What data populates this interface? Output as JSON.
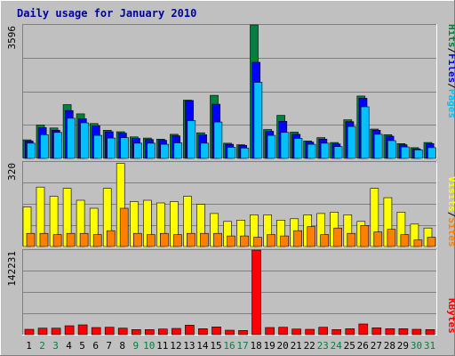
{
  "title": "Daily usage for January 2010",
  "colors": {
    "background": "#c0c0c0",
    "plot": "#c0c0c0",
    "grid": "#808080",
    "title": "#0000a0",
    "hits": "#008040",
    "files": "#0000ff",
    "pages": "#00c0ff",
    "visits": "#ffff00",
    "sites": "#ff8000",
    "kbytes": "#ff0000",
    "weekday_label": "#000000",
    "weekend_label": "#008040"
  },
  "chart_data": [
    {
      "type": "bar",
      "panel": "top",
      "max_label": "3596",
      "ylim": [
        0,
        3596
      ],
      "right_labels": [
        "Pages",
        "/",
        "Files",
        "/",
        "Hits"
      ],
      "categories": [
        "1",
        "2",
        "3",
        "4",
        "5",
        "6",
        "7",
        "8",
        "9",
        "10",
        "11",
        "12",
        "13",
        "14",
        "15",
        "16",
        "17",
        "18",
        "19",
        "20",
        "21",
        "22",
        "23",
        "24",
        "25",
        "26",
        "27",
        "28",
        "29",
        "30",
        "31"
      ],
      "series": [
        {
          "name": "Hits",
          "values": [
            500,
            900,
            820,
            1450,
            1200,
            940,
            760,
            720,
            580,
            550,
            520,
            650,
            1570,
            690,
            1700,
            410,
            370,
            3596,
            780,
            1160,
            710,
            470,
            560,
            430,
            1040,
            1680,
            790,
            640,
            400,
            290,
            430
          ]
        },
        {
          "name": "Files",
          "values": [
            470,
            830,
            760,
            1290,
            1070,
            880,
            720,
            680,
            540,
            510,
            490,
            610,
            1560,
            640,
            1460,
            380,
            350,
            2590,
            730,
            1000,
            650,
            440,
            520,
            390,
            990,
            1620,
            760,
            600,
            370,
            260,
            400
          ]
        },
        {
          "name": "Pages",
          "values": [
            410,
            640,
            700,
            1080,
            960,
            620,
            550,
            560,
            410,
            410,
            380,
            420,
            1020,
            410,
            980,
            300,
            280,
            2050,
            620,
            700,
            540,
            380,
            410,
            320,
            860,
            1390,
            650,
            480,
            310,
            230,
            290
          ]
        }
      ]
    },
    {
      "type": "bar",
      "panel": "middle",
      "max_label": "320",
      "ylim": [
        0,
        320
      ],
      "right_labels": [
        "Sites",
        "/",
        "Visits"
      ],
      "categories": [
        "1",
        "2",
        "3",
        "4",
        "5",
        "6",
        "7",
        "8",
        "9",
        "10",
        "11",
        "12",
        "13",
        "14",
        "15",
        "16",
        "17",
        "18",
        "19",
        "20",
        "21",
        "22",
        "23",
        "24",
        "25",
        "26",
        "27",
        "28",
        "29",
        "30",
        "31"
      ],
      "series": [
        {
          "name": "Visits",
          "values": [
            150,
            225,
            190,
            220,
            175,
            145,
            220,
            315,
            170,
            175,
            165,
            170,
            190,
            160,
            125,
            95,
            100,
            120,
            120,
            100,
            105,
            120,
            125,
            130,
            120,
            95,
            220,
            185,
            130,
            85,
            70
          ]
        },
        {
          "name": "Sites",
          "values": [
            50,
            50,
            45,
            50,
            50,
            45,
            60,
            145,
            50,
            45,
            50,
            45,
            50,
            50,
            50,
            40,
            40,
            35,
            45,
            40,
            60,
            75,
            45,
            70,
            50,
            80,
            55,
            65,
            45,
            25,
            35
          ]
        }
      ]
    },
    {
      "type": "bar",
      "panel": "bottom",
      "max_label": "142231",
      "ylim": [
        0,
        142231
      ],
      "right_labels": [
        "KBytes"
      ],
      "categories": [
        "1",
        "2",
        "3",
        "4",
        "5",
        "6",
        "7",
        "8",
        "9",
        "10",
        "11",
        "12",
        "13",
        "14",
        "15",
        "16",
        "17",
        "18",
        "19",
        "20",
        "21",
        "22",
        "23",
        "24",
        "25",
        "26",
        "27",
        "28",
        "29",
        "30",
        "31"
      ],
      "series": [
        {
          "name": "KBytes",
          "values": [
            9000,
            11000,
            11000,
            15000,
            16500,
            12000,
            12500,
            11000,
            8500,
            8500,
            9500,
            10500,
            16000,
            10000,
            13000,
            7500,
            7000,
            142231,
            12000,
            12500,
            9500,
            9000,
            12500,
            8500,
            10000,
            18000,
            11500,
            10000,
            10000,
            9000,
            8500
          ]
        }
      ]
    }
  ],
  "weekend_days": [
    "2",
    "3",
    "9",
    "10",
    "16",
    "17",
    "23",
    "24",
    "30",
    "31"
  ]
}
